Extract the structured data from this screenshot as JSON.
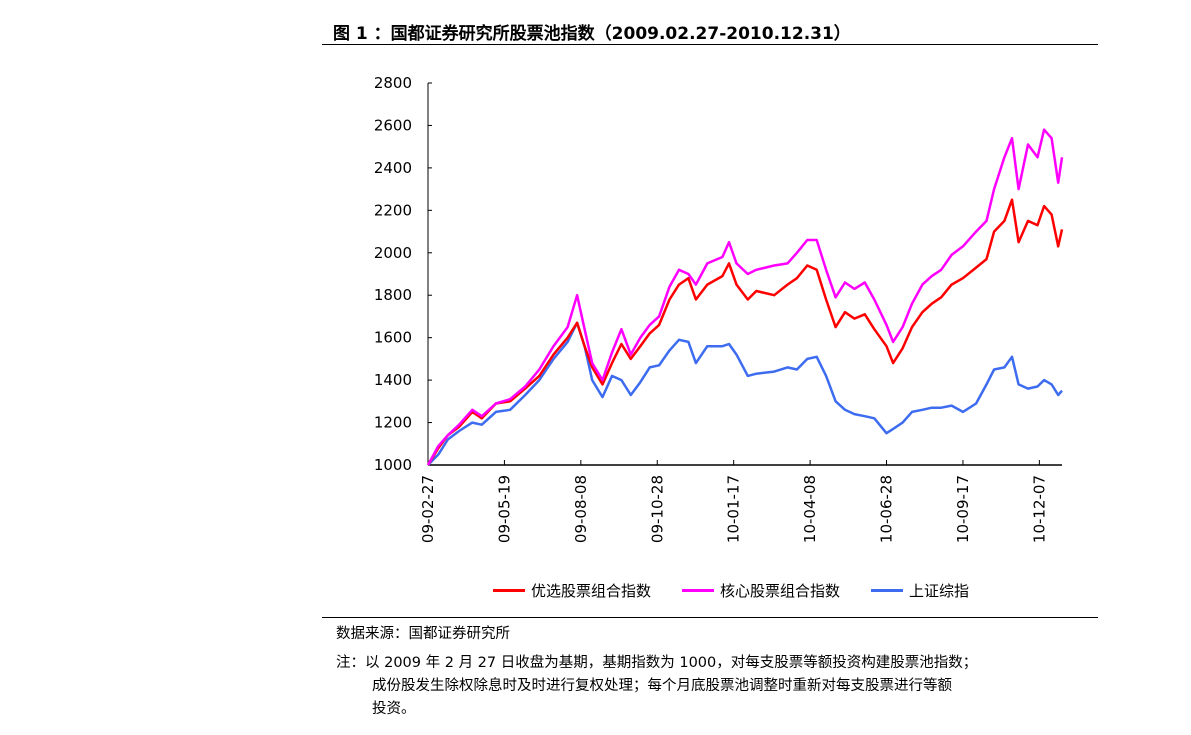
{
  "title": "图 1 ：国都证券研究所股票池指数（2009.02.27-2010.12.31）",
  "source": "数据来源：国都证券研究所",
  "note_lines": [
    "注：以 2009 年 2 月 27 日收盘为基期，基期指数为 1000，对每支股票等额投资构建股票池指数；",
    "成份股发生除权除息时及时进行复权处理；每个月底股票池调整时重新对每支股票进行等额",
    "投资。"
  ],
  "chart_data": {
    "type": "line",
    "title": "",
    "xlabel": "",
    "ylabel": "",
    "xlim": [
      "2009-02-27",
      "2010-12-31"
    ],
    "ylim": [
      1000,
      2800
    ],
    "yticks": [
      1000,
      1200,
      1400,
      1600,
      1800,
      2000,
      2200,
      2400,
      2600,
      2800
    ],
    "xticks": [
      {
        "date": "2009-02-27",
        "label": "09-02-27"
      },
      {
        "date": "2009-05-19",
        "label": "09-05-19"
      },
      {
        "date": "2009-08-08",
        "label": "09-08-08"
      },
      {
        "date": "2009-10-28",
        "label": "09-10-28"
      },
      {
        "date": "2010-01-17",
        "label": "10-01-17"
      },
      {
        "date": "2010-04-08",
        "label": "10-04-08"
      },
      {
        "date": "2010-06-28",
        "label": "10-06-28"
      },
      {
        "date": "2010-09-17",
        "label": "10-09-17"
      },
      {
        "date": "2010-12-07",
        "label": "10-12-07"
      }
    ],
    "grid": false,
    "legend_position": "bottom",
    "x": [
      "2009-02-27",
      "2009-03-10",
      "2009-03-20",
      "2009-04-01",
      "2009-04-15",
      "2009-04-25",
      "2009-05-10",
      "2009-05-25",
      "2009-06-10",
      "2009-06-25",
      "2009-07-10",
      "2009-07-25",
      "2009-08-04",
      "2009-08-12",
      "2009-08-20",
      "2009-08-31",
      "2009-09-10",
      "2009-09-20",
      "2009-09-30",
      "2009-10-10",
      "2009-10-20",
      "2009-10-30",
      "2009-11-10",
      "2009-11-20",
      "2009-11-30",
      "2009-12-08",
      "2009-12-20",
      "2010-01-05",
      "2010-01-12",
      "2010-01-20",
      "2010-02-01",
      "2010-02-10",
      "2010-03-01",
      "2010-03-15",
      "2010-03-25",
      "2010-04-05",
      "2010-04-15",
      "2010-04-25",
      "2010-05-05",
      "2010-05-15",
      "2010-05-25",
      "2010-06-05",
      "2010-06-15",
      "2010-06-28",
      "2010-07-05",
      "2010-07-15",
      "2010-07-25",
      "2010-08-05",
      "2010-08-15",
      "2010-08-25",
      "2010-09-05",
      "2010-09-17",
      "2010-10-01",
      "2010-10-12",
      "2010-10-20",
      "2010-10-31",
      "2010-11-08",
      "2010-11-15",
      "2010-11-25",
      "2010-12-05",
      "2010-12-12",
      "2010-12-20",
      "2010-12-27",
      "2010-12-31"
    ],
    "series": [
      {
        "name": "优选股票组合指数",
        "color": "#ff0000",
        "values": [
          1000,
          1080,
          1140,
          1180,
          1250,
          1220,
          1290,
          1300,
          1360,
          1420,
          1520,
          1600,
          1670,
          1560,
          1460,
          1380,
          1480,
          1570,
          1500,
          1560,
          1620,
          1660,
          1780,
          1850,
          1880,
          1780,
          1850,
          1890,
          1950,
          1850,
          1780,
          1820,
          1800,
          1850,
          1880,
          1940,
          1920,
          1780,
          1650,
          1720,
          1690,
          1710,
          1640,
          1560,
          1480,
          1550,
          1650,
          1720,
          1760,
          1790,
          1850,
          1880,
          1930,
          1970,
          2100,
          2150,
          2250,
          2050,
          2150,
          2130,
          2220,
          2180,
          2030,
          2110
        ]
      },
      {
        "name": "核心股票组合指数",
        "color": "#ff00ff",
        "values": [
          1000,
          1090,
          1140,
          1190,
          1260,
          1230,
          1290,
          1310,
          1370,
          1450,
          1560,
          1650,
          1800,
          1640,
          1480,
          1400,
          1530,
          1640,
          1520,
          1600,
          1660,
          1700,
          1840,
          1920,
          1900,
          1850,
          1950,
          1980,
          2050,
          1950,
          1900,
          1920,
          1940,
          1950,
          2000,
          2060,
          2060,
          1920,
          1790,
          1860,
          1830,
          1860,
          1780,
          1660,
          1580,
          1650,
          1760,
          1850,
          1890,
          1920,
          1990,
          2030,
          2100,
          2150,
          2300,
          2450,
          2540,
          2300,
          2510,
          2450,
          2580,
          2540,
          2330,
          2450
        ]
      },
      {
        "name": "上证综指",
        "color": "#3d6cf0",
        "values": [
          1000,
          1050,
          1120,
          1160,
          1200,
          1190,
          1250,
          1260,
          1330,
          1400,
          1500,
          1580,
          1670,
          1560,
          1400,
          1320,
          1420,
          1400,
          1330,
          1390,
          1460,
          1470,
          1540,
          1590,
          1580,
          1480,
          1560,
          1560,
          1570,
          1520,
          1420,
          1430,
          1440,
          1460,
          1450,
          1500,
          1510,
          1420,
          1300,
          1260,
          1240,
          1230,
          1220,
          1150,
          1170,
          1200,
          1250,
          1260,
          1270,
          1270,
          1280,
          1250,
          1290,
          1380,
          1450,
          1460,
          1510,
          1380,
          1360,
          1370,
          1400,
          1380,
          1330,
          1350
        ]
      }
    ]
  }
}
